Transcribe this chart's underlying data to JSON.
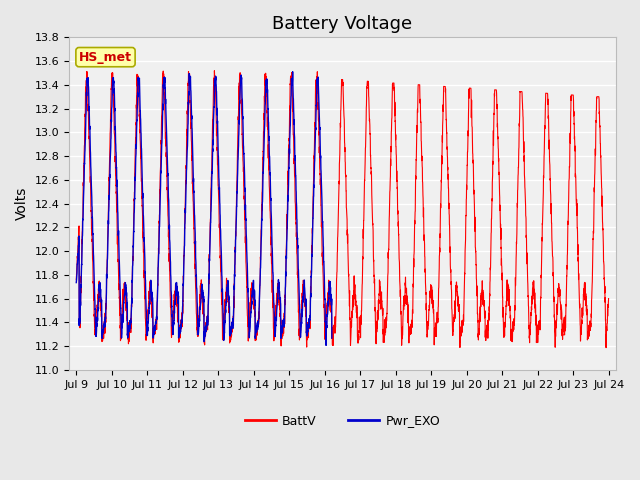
{
  "title": "Battery Voltage",
  "ylabel": "Volts",
  "ylim": [
    11.0,
    13.8
  ],
  "yticks": [
    11.0,
    11.2,
    11.4,
    11.6,
    11.8,
    12.0,
    12.2,
    12.4,
    12.6,
    12.8,
    13.0,
    13.2,
    13.4,
    13.6,
    13.8
  ],
  "xtick_labels": [
    "Jul 9",
    "Jul 10",
    "Jul 11",
    "Jul 12",
    "Jul 13",
    "Jul 14",
    "Jul 15",
    "Jul 16",
    "Jul 17",
    "Jul 18",
    "Jul 19",
    "Jul 20",
    "Jul 21",
    "Jul 22",
    "Jul 23",
    "Jul 24"
  ],
  "color_red": "#FF0000",
  "color_blue": "#0000CC",
  "legend_entries": [
    "BattV",
    "Pwr_EXO"
  ],
  "annotation_text": "HS_met",
  "annotation_color": "#CC0000",
  "annotation_bg": "#FFFFAA",
  "annotation_border": "#AAAA00",
  "bg_color": "#E8E8E8",
  "plot_bg": "#F0F0F0",
  "grid_color": "#FFFFFF",
  "title_fontsize": 13,
  "label_fontsize": 10,
  "tick_fontsize": 8,
  "figsize": [
    6.4,
    4.8
  ],
  "dpi": 100
}
